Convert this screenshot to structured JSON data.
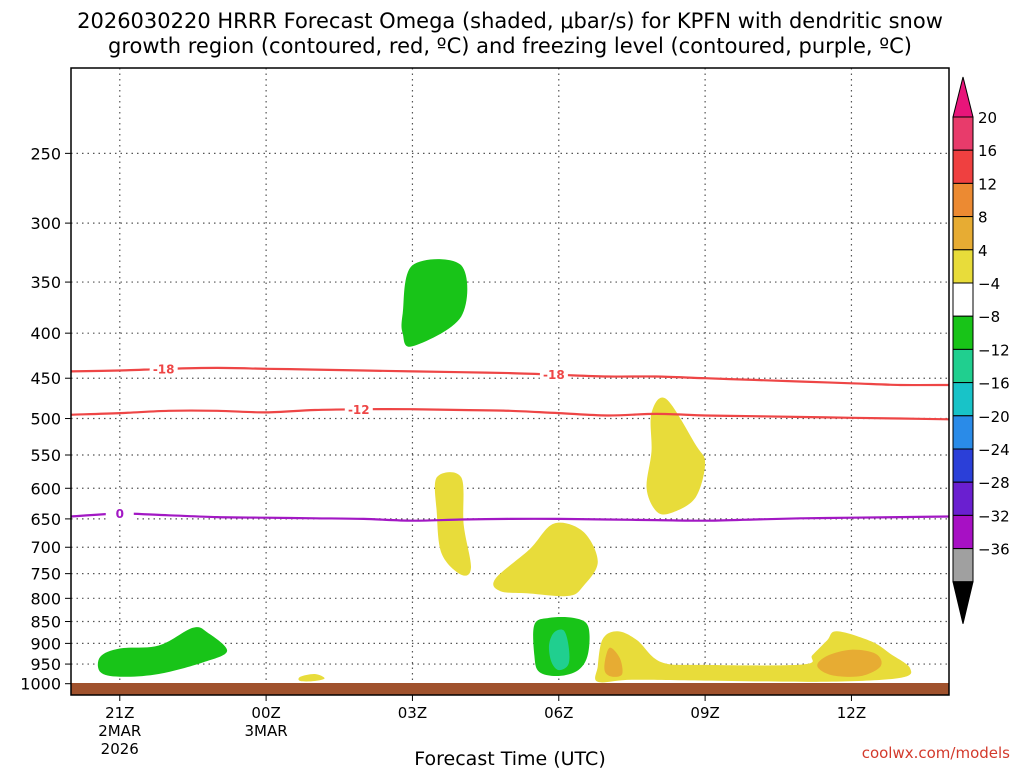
{
  "title": {
    "line1": "2026030220 HRRR Forecast Omega (shaded, μbar/s) for KPFN with dendritic snow",
    "line2": "growth region (contoured, red, ºC) and freezing level (contoured, purple, ºC)"
  },
  "credit": "coolwx.com/models",
  "chart_data": {
    "type": "time-height cross-section",
    "title": "2026030220 HRRR Forecast Omega (shaded, μbar/s) for KPFN with dendritic snow growth region (contoured, red, ºC) and freezing level (contoured, purple, ºC)",
    "xlabel": "Forecast Time (UTC)",
    "ylabel": "",
    "x_ticks": [
      {
        "hour": 21,
        "label": "21Z",
        "sub1": "2MAR",
        "sub2": "2026"
      },
      {
        "hour": 24,
        "label": "00Z",
        "sub1": "3MAR",
        "sub2": ""
      },
      {
        "hour": 27,
        "label": "03Z",
        "sub1": "",
        "sub2": ""
      },
      {
        "hour": 30,
        "label": "06Z",
        "sub1": "",
        "sub2": ""
      },
      {
        "hour": 33,
        "label": "09Z",
        "sub1": "",
        "sub2": ""
      },
      {
        "hour": 36,
        "label": "12Z",
        "sub1": "",
        "sub2": ""
      }
    ],
    "xlim": [
      20,
      38
    ],
    "y_ticks": [
      250,
      300,
      350,
      400,
      450,
      500,
      550,
      600,
      650,
      700,
      750,
      800,
      850,
      900,
      950,
      1000
    ],
    "ylim_hpa": [
      1030,
      200
    ],
    "y_scale": "log",
    "grid": "dotted",
    "colorbar": {
      "labels": [
        "20",
        "16",
        "12",
        "8",
        "4",
        "−4",
        "−8",
        "−12",
        "−16",
        "−20",
        "−24",
        "−28",
        "−32",
        "−36"
      ],
      "colors": [
        "#e83b6b",
        "#ef4040",
        "#ec8a32",
        "#e7ac33",
        "#e8dc3a",
        "#ffffff",
        "#18c418",
        "#20cf8f",
        "#18c3c8",
        "#2a8be8",
        "#2b3fd8",
        "#6a1fd0",
        "#a710c4",
        "#a0a0a0"
      ],
      "upper_arrow_color": "#e8157a",
      "lower_arrow_color": "#000000"
    },
    "contours": [
      {
        "name": "-18",
        "variable": "temperature",
        "color": "#ee4646",
        "label_hours": [
          21.9,
          29.9
        ],
        "points": [
          [
            20,
            442
          ],
          [
            21,
            441
          ],
          [
            22,
            439
          ],
          [
            23,
            438
          ],
          [
            24,
            439
          ],
          [
            25,
            440
          ],
          [
            26,
            441
          ],
          [
            27,
            442
          ],
          [
            28,
            443
          ],
          [
            29,
            444
          ],
          [
            30,
            446
          ],
          [
            31,
            448
          ],
          [
            32,
            448
          ],
          [
            33,
            450
          ],
          [
            34,
            452
          ],
          [
            35,
            454
          ],
          [
            36,
            456
          ],
          [
            37,
            458
          ],
          [
            38,
            458
          ]
        ]
      },
      {
        "name": "-12",
        "variable": "temperature",
        "color": "#ee4646",
        "label_hours": [
          25.9
        ],
        "points": [
          [
            20,
            495
          ],
          [
            21,
            493
          ],
          [
            22,
            490
          ],
          [
            23,
            490
          ],
          [
            24,
            492
          ],
          [
            25,
            489
          ],
          [
            26,
            488
          ],
          [
            27,
            488
          ],
          [
            28,
            489
          ],
          [
            29,
            490
          ],
          [
            30,
            493
          ],
          [
            31,
            496
          ],
          [
            32,
            494
          ],
          [
            33,
            496
          ],
          [
            34,
            497
          ],
          [
            35,
            498
          ],
          [
            36,
            499
          ],
          [
            37,
            500
          ],
          [
            38,
            501
          ]
        ]
      },
      {
        "name": "0",
        "variable": "freezing level",
        "color": "#a218c4",
        "label_hours": [
          21.0
        ],
        "points": [
          [
            20,
            646
          ],
          [
            21,
            641
          ],
          [
            22,
            644
          ],
          [
            23,
            647
          ],
          [
            24,
            648
          ],
          [
            25,
            649
          ],
          [
            26,
            650
          ],
          [
            27,
            653
          ],
          [
            28,
            651
          ],
          [
            29,
            650
          ],
          [
            30,
            650
          ],
          [
            31,
            651
          ],
          [
            32,
            652
          ],
          [
            33,
            653
          ],
          [
            34,
            651
          ],
          [
            35,
            649
          ],
          [
            36,
            648
          ],
          [
            37,
            647
          ],
          [
            38,
            646
          ]
        ]
      }
    ],
    "omega_regions": [
      {
        "value": "-8",
        "color": "#18c418",
        "points": [
          [
            27,
            335
          ],
          [
            28,
            335
          ],
          [
            28,
            383
          ],
          [
            27,
            414
          ],
          [
            26.8,
            400
          ],
          [
            26.8,
            380
          ]
        ]
      },
      {
        "value": "-8",
        "color": "#18c418",
        "points": [
          [
            20.6,
            932
          ],
          [
            21,
            912
          ],
          [
            21.8,
            905
          ],
          [
            22.5,
            864
          ],
          [
            22.8,
            875
          ],
          [
            23.2,
            918
          ],
          [
            22.7,
            946
          ],
          [
            21.8,
            975
          ],
          [
            21,
            982
          ],
          [
            20.6,
            970
          ]
        ]
      },
      {
        "value": "-8",
        "color": "#18c418",
        "points": [
          [
            29.5,
            857
          ],
          [
            29.8,
            842
          ],
          [
            30.3,
            842
          ],
          [
            30.6,
            860
          ],
          [
            30.6,
            925
          ],
          [
            30.4,
            965
          ],
          [
            30,
            980
          ],
          [
            29.6,
            970
          ],
          [
            29.5,
            930
          ]
        ]
      },
      {
        "value": "-12",
        "color": "#20cf8f",
        "points": [
          [
            29.9,
            875
          ],
          [
            30.1,
            870
          ],
          [
            30.2,
            905
          ],
          [
            30.2,
            950
          ],
          [
            30,
            965
          ],
          [
            29.85,
            945
          ],
          [
            29.8,
            905
          ]
        ]
      },
      {
        "value": "4",
        "color": "#e8dc3a",
        "points": [
          [
            27.5,
            583
          ],
          [
            28,
            583
          ],
          [
            28.05,
            660
          ],
          [
            28.2,
            738
          ],
          [
            28,
            752
          ],
          [
            27.6,
            712
          ],
          [
            27.5,
            640
          ]
        ]
      },
      {
        "value": "4",
        "color": "#e8dc3a",
        "points": [
          [
            28.7,
            760
          ],
          [
            29.4,
            704
          ],
          [
            29.9,
            658
          ],
          [
            30.5,
            672
          ],
          [
            30.8,
            727
          ],
          [
            30.5,
            775
          ],
          [
            30.2,
            795
          ],
          [
            29.4,
            790
          ],
          [
            28.8,
            785
          ]
        ]
      },
      {
        "value": "4",
        "color": "#e8dc3a",
        "points": [
          [
            31.9,
            493
          ],
          [
            32.2,
            475
          ],
          [
            32.8,
            535
          ],
          [
            33.0,
            562
          ],
          [
            32.8,
            615
          ],
          [
            32.3,
            640
          ],
          [
            32.0,
            637
          ],
          [
            31.8,
            600
          ],
          [
            31.9,
            545
          ]
        ]
      },
      {
        "value": "4",
        "color": "#e8dc3a",
        "points": [
          [
            30.9,
            890
          ],
          [
            31.2,
            872
          ],
          [
            31.6,
            892
          ],
          [
            32.1,
            945
          ],
          [
            33,
            952
          ],
          [
            35,
            951
          ],
          [
            35.2,
            928
          ],
          [
            35.5,
            893
          ],
          [
            35.7,
            872
          ],
          [
            36.4,
            895
          ],
          [
            36.8,
            925
          ],
          [
            37.2,
            960
          ],
          [
            37,
            985
          ],
          [
            35.5,
            995
          ],
          [
            33,
            992
          ],
          [
            31.5,
            990
          ],
          [
            30.8,
            995
          ],
          [
            30.8,
            955
          ]
        ]
      },
      {
        "value": "8",
        "color": "#e7ac33",
        "points": [
          [
            35.5,
            930
          ],
          [
            36,
            915
          ],
          [
            36.5,
            925
          ],
          [
            36.6,
            955
          ],
          [
            36.2,
            980
          ],
          [
            35.6,
            978
          ],
          [
            35.3,
            955
          ]
        ]
      },
      {
        "value": "8",
        "color": "#e7ac33",
        "points": [
          [
            31.05,
            910
          ],
          [
            31.25,
            935
          ],
          [
            31.3,
            975
          ],
          [
            31.1,
            982
          ],
          [
            30.95,
            970
          ],
          [
            30.95,
            940
          ]
        ]
      },
      {
        "value": "4",
        "color": "#e8dc3a",
        "points": [
          [
            24.7,
            982
          ],
          [
            25,
            975
          ],
          [
            25.2,
            986
          ],
          [
            25,
            993
          ],
          [
            24.7,
            993
          ]
        ]
      }
    ]
  }
}
